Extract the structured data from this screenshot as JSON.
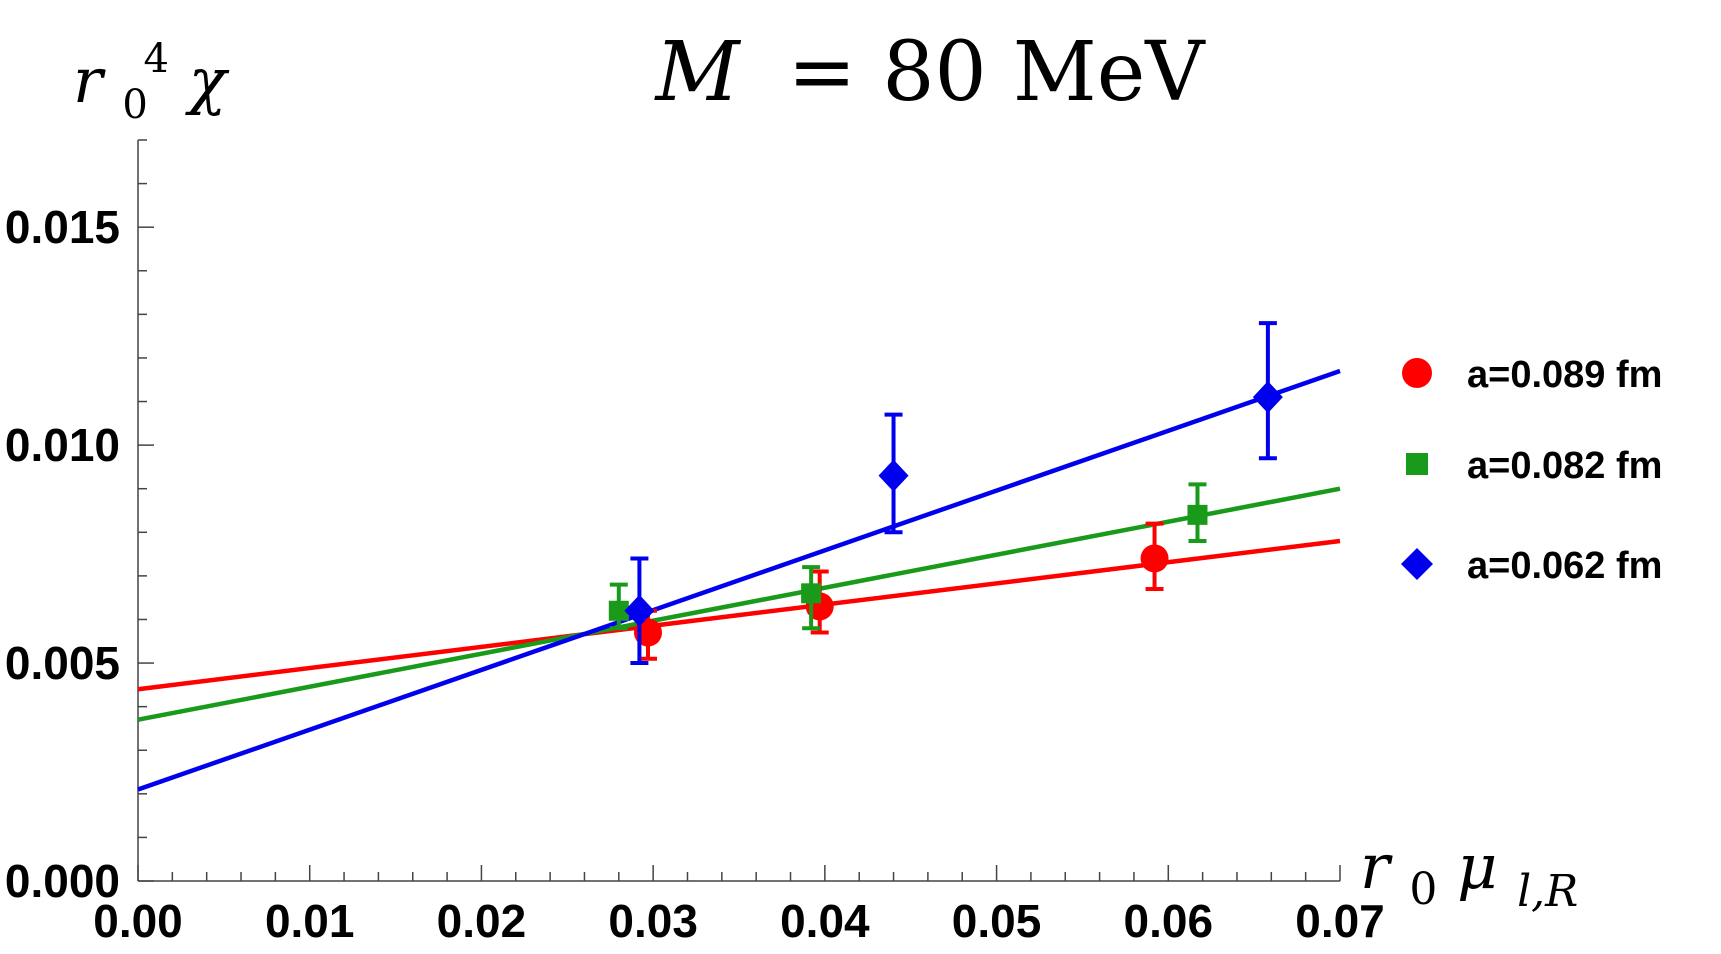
{
  "chart_data": {
    "type": "scatter",
    "title": {
      "var": "M",
      "rest": "= 80 MeV"
    },
    "ylabel": {
      "base": "r",
      "sub": "0",
      "sup": "4",
      "tail": "χ"
    },
    "xlabel": {
      "base": "r",
      "sub": "0",
      "mu": "μ",
      "musub": "l,R"
    },
    "xlim": [
      0,
      0.07
    ],
    "ylim": [
      0,
      0.017
    ],
    "xticks": [
      0.0,
      0.01,
      0.02,
      0.03,
      0.04,
      0.05,
      0.06,
      0.07
    ],
    "xtick_labels": [
      "0.00",
      "0.01",
      "0.02",
      "0.03",
      "0.04",
      "0.05",
      "0.06",
      "0.07"
    ],
    "yticks": [
      0.0,
      0.005,
      0.01,
      0.015
    ],
    "ytick_labels": [
      "0.000",
      "0.005",
      "0.010",
      "0.015"
    ],
    "series": [
      {
        "name": "a=0.089 fm",
        "color": "#ff0000",
        "marker": "circle",
        "points": [
          {
            "x": 0.0297,
            "y": 0.0057,
            "lo": 0.0051,
            "hi": 0.0062
          },
          {
            "x": 0.0397,
            "y": 0.0063,
            "lo": 0.0057,
            "hi": 0.0071
          },
          {
            "x": 0.0592,
            "y": 0.0074,
            "lo": 0.0067,
            "hi": 0.0082
          }
        ],
        "fit": {
          "x0": 0.0,
          "y0": 0.0044,
          "x1": 0.07,
          "y1": 0.0078
        }
      },
      {
        "name": "a=0.082 fm",
        "color": "#1a9a1a",
        "marker": "square",
        "points": [
          {
            "x": 0.028,
            "y": 0.0062,
            "lo": 0.0058,
            "hi": 0.0068
          },
          {
            "x": 0.0392,
            "y": 0.0066,
            "lo": 0.0058,
            "hi": 0.0072
          },
          {
            "x": 0.0617,
            "y": 0.0084,
            "lo": 0.0078,
            "hi": 0.0091
          }
        ],
        "fit": {
          "x0": 0.0,
          "y0": 0.0037,
          "x1": 0.07,
          "y1": 0.009
        }
      },
      {
        "name": "a=0.062 fm",
        "color": "#0000ee",
        "marker": "diamond",
        "points": [
          {
            "x": 0.0292,
            "y": 0.0062,
            "lo": 0.005,
            "hi": 0.0074
          },
          {
            "x": 0.044,
            "y": 0.0093,
            "lo": 0.008,
            "hi": 0.0107
          },
          {
            "x": 0.0658,
            "y": 0.0111,
            "lo": 0.0097,
            "hi": 0.0128
          }
        ],
        "fit": {
          "x0": 0.0,
          "y0": 0.0021,
          "x1": 0.07,
          "y1": 0.0117
        }
      }
    ],
    "legend": [
      "a=0.089 fm",
      "a=0.082 fm",
      "a=0.062 fm"
    ]
  }
}
